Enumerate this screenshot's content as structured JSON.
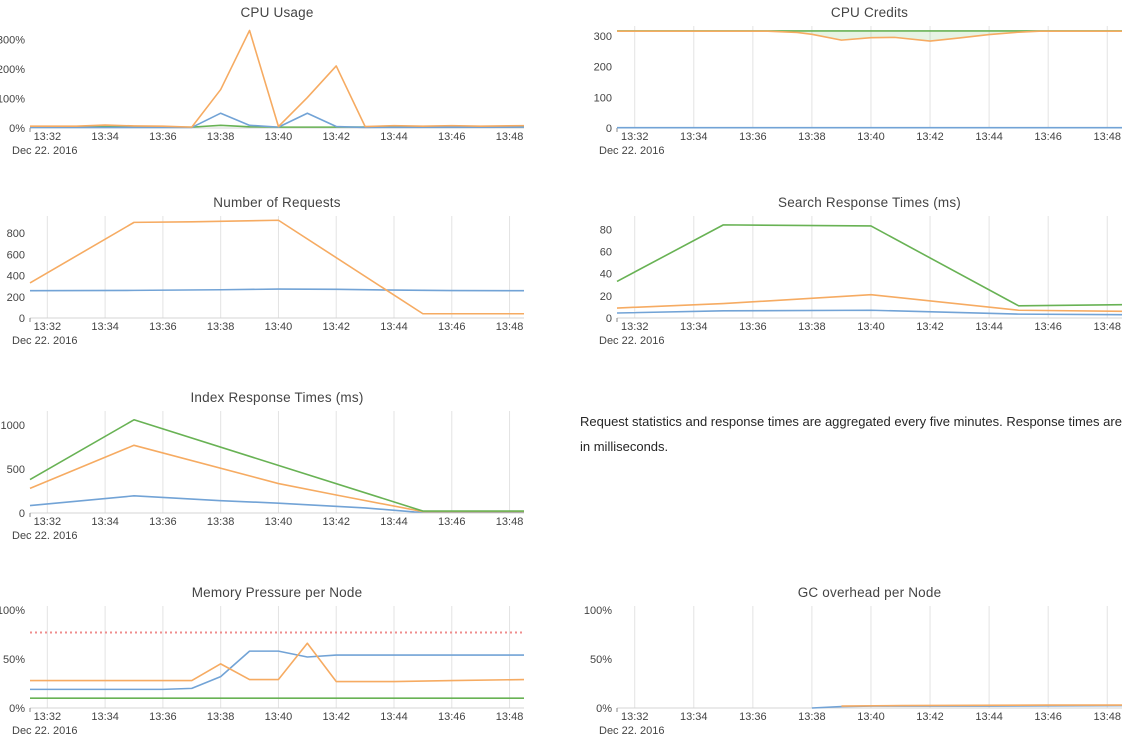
{
  "date_label": "Dec 22. 2016",
  "x_tick_labels": [
    "13:32",
    "13:34",
    "13:36",
    "13:38",
    "13:40",
    "13:42",
    "13:44",
    "13:46",
    "13:48"
  ],
  "note": {
    "text": "Request statistics and response times are aggregated every five minutes. Response times are in milliseconds."
  },
  "colors": {
    "blue": "#72a3d6",
    "orange": "#f6ab62",
    "green": "#68b254",
    "red": "#ef8e8e",
    "grid": "#e3e3e3",
    "axis_line": "#d4d4d4",
    "tick": "#888888",
    "text": "#444444",
    "band_fill": "rgba(104,178,84,0.16)"
  },
  "chart_data": [
    {
      "id": "cpu-usage",
      "type": "line",
      "title": "CPU Usage",
      "grid_vertical": false,
      "x_domain_minutes": [
        91.4,
        108.5
      ],
      "x_tick_minutes": [
        92,
        94,
        96,
        98,
        100,
        102,
        104,
        106,
        108
      ],
      "ylim": [
        0,
        345
      ],
      "y_ticks": [
        {
          "value": 0,
          "label": "0%"
        },
        {
          "value": 100,
          "label": "100%"
        },
        {
          "value": 200,
          "label": "200%"
        },
        {
          "value": 300,
          "label": "300%"
        }
      ],
      "series": [
        {
          "name": "green",
          "color_key": "green",
          "points": [
            [
              91.4,
              4
            ],
            [
              94,
              5
            ],
            [
              96,
              3
            ],
            [
              97,
              3
            ],
            [
              98,
              9
            ],
            [
              99,
              4
            ],
            [
              100,
              3
            ],
            [
              102,
              3
            ],
            [
              104,
              4
            ],
            [
              106,
              3
            ],
            [
              108.5,
              4
            ]
          ]
        },
        {
          "name": "blue",
          "color_key": "blue",
          "points": [
            [
              91.4,
              2
            ],
            [
              96.5,
              2
            ],
            [
              97,
              2
            ],
            [
              98,
              50
            ],
            [
              99,
              9
            ],
            [
              100,
              3
            ],
            [
              101,
              50
            ],
            [
              102,
              5
            ],
            [
              103,
              2
            ],
            [
              108.5,
              3
            ]
          ]
        },
        {
          "name": "orange",
          "color_key": "orange",
          "points": [
            [
              91.4,
              6
            ],
            [
              93,
              6
            ],
            [
              94,
              10
            ],
            [
              95,
              7
            ],
            [
              96,
              6
            ],
            [
              97,
              3
            ],
            [
              98,
              130
            ],
            [
              99,
              330
            ],
            [
              100,
              5
            ],
            [
              101,
              103
            ],
            [
              102,
              210
            ],
            [
              103,
              5
            ],
            [
              104,
              8
            ],
            [
              105,
              6
            ],
            [
              106,
              8
            ],
            [
              107,
              6
            ],
            [
              108.5,
              8
            ]
          ]
        }
      ]
    },
    {
      "id": "cpu-credits",
      "type": "line",
      "title": "CPU Credits",
      "grid_vertical": true,
      "x_domain_minutes": [
        91.4,
        108.5
      ],
      "x_tick_minutes": [
        92,
        94,
        96,
        98,
        100,
        102,
        104,
        106,
        108
      ],
      "ylim": [
        0,
        332
      ],
      "y_ticks": [
        {
          "value": 0,
          "label": "0"
        },
        {
          "value": 100,
          "label": "100"
        },
        {
          "value": 200,
          "label": "200"
        },
        {
          "value": 300,
          "label": "300"
        }
      ],
      "band": {
        "top_series": "green",
        "bottom_series": "orange"
      },
      "series": [
        {
          "name": "blue",
          "color_key": "blue",
          "points": [
            [
              91.4,
              1
            ],
            [
              108.5,
              1
            ]
          ]
        },
        {
          "name": "green",
          "color_key": "green",
          "points": [
            [
              91.4,
              316
            ],
            [
              108.5,
              316
            ]
          ]
        },
        {
          "name": "orange",
          "color_key": "orange",
          "points": [
            [
              91.4,
              315
            ],
            [
              96.5,
              315
            ],
            [
              97.5,
              311
            ],
            [
              98,
              305
            ],
            [
              99,
              286
            ],
            [
              100,
              294
            ],
            [
              100.8,
              295
            ],
            [
              102,
              283
            ],
            [
              103,
              293
            ],
            [
              104,
              304
            ],
            [
              105,
              312
            ],
            [
              105.7,
              315
            ],
            [
              108.5,
              315
            ]
          ]
        }
      ]
    },
    {
      "id": "number-of-requests",
      "type": "line",
      "title": "Number of Requests",
      "grid_vertical": true,
      "x_domain_minutes": [
        91.4,
        108.5
      ],
      "x_tick_minutes": [
        92,
        94,
        96,
        98,
        100,
        102,
        104,
        106,
        108
      ],
      "ylim": [
        0,
        960
      ],
      "y_ticks": [
        {
          "value": 0,
          "label": "0"
        },
        {
          "value": 200,
          "label": "200"
        },
        {
          "value": 400,
          "label": "400"
        },
        {
          "value": 600,
          "label": "600"
        },
        {
          "value": 800,
          "label": "800"
        }
      ],
      "series": [
        {
          "name": "blue",
          "color_key": "blue",
          "points": [
            [
              91.4,
              257
            ],
            [
              95,
              260
            ],
            [
              98,
              266
            ],
            [
              100,
              272
            ],
            [
              102,
              270
            ],
            [
              104,
              263
            ],
            [
              106,
              258
            ],
            [
              108.5,
              257
            ]
          ]
        },
        {
          "name": "orange",
          "color_key": "orange",
          "points": [
            [
              91.4,
              330
            ],
            [
              95,
              900
            ],
            [
              97,
              905
            ],
            [
              100,
              920
            ],
            [
              105,
              40
            ],
            [
              108.5,
              40
            ]
          ]
        }
      ]
    },
    {
      "id": "search-response-times",
      "type": "line",
      "title": "Search Response Times (ms)",
      "grid_vertical": true,
      "x_domain_minutes": [
        91.4,
        108.5
      ],
      "x_tick_minutes": [
        92,
        94,
        96,
        98,
        100,
        102,
        104,
        106,
        108
      ],
      "ylim": [
        0,
        92
      ],
      "y_ticks": [
        {
          "value": 0,
          "label": "0"
        },
        {
          "value": 20,
          "label": "20"
        },
        {
          "value": 40,
          "label": "40"
        },
        {
          "value": 60,
          "label": "60"
        },
        {
          "value": 80,
          "label": "80"
        }
      ],
      "series": [
        {
          "name": "blue",
          "color_key": "blue",
          "points": [
            [
              91.4,
              4.5
            ],
            [
              95,
              6.5
            ],
            [
              100,
              7
            ],
            [
              105,
              3.5
            ],
            [
              108.5,
              3
            ]
          ]
        },
        {
          "name": "orange",
          "color_key": "orange",
          "points": [
            [
              91.4,
              9
            ],
            [
              95,
              13
            ],
            [
              100,
              21
            ],
            [
              105,
              7
            ],
            [
              108.5,
              6
            ]
          ]
        },
        {
          "name": "green",
          "color_key": "green",
          "points": [
            [
              91.4,
              33
            ],
            [
              95,
              84
            ],
            [
              100,
              83
            ],
            [
              105,
              11
            ],
            [
              108.5,
              12
            ]
          ]
        }
      ]
    },
    {
      "id": "index-response-times",
      "type": "line",
      "title": "Index Response Times (ms)",
      "grid_vertical": true,
      "x_domain_minutes": [
        91.4,
        108.5
      ],
      "x_tick_minutes": [
        92,
        94,
        96,
        98,
        100,
        102,
        104,
        106,
        108
      ],
      "ylim": [
        0,
        1160
      ],
      "y_ticks": [
        {
          "value": 0,
          "label": "0"
        },
        {
          "value": 500,
          "label": "500"
        },
        {
          "value": 1000,
          "label": "1000"
        }
      ],
      "series": [
        {
          "name": "blue",
          "color_key": "blue",
          "points": [
            [
              91.4,
              85
            ],
            [
              95,
              195
            ],
            [
              98,
              140
            ],
            [
              100,
              112
            ],
            [
              103,
              58
            ],
            [
              104.7,
              12
            ],
            [
              108.5,
              10
            ]
          ]
        },
        {
          "name": "orange",
          "color_key": "orange",
          "points": [
            [
              91.4,
              280
            ],
            [
              95,
              770
            ],
            [
              100,
              335
            ],
            [
              102,
              205
            ],
            [
              105,
              16
            ],
            [
              108.5,
              16
            ]
          ]
        },
        {
          "name": "green",
          "color_key": "green",
          "points": [
            [
              91.4,
              380
            ],
            [
              95,
              1060
            ],
            [
              105,
              22
            ],
            [
              108.5,
              22
            ]
          ]
        }
      ]
    },
    {
      "id": "memory-pressure-per-node",
      "type": "line",
      "title": "Memory Pressure per Node",
      "grid_vertical": true,
      "x_domain_minutes": [
        91.4,
        108.5
      ],
      "x_tick_minutes": [
        92,
        94,
        96,
        98,
        100,
        102,
        104,
        106,
        108
      ],
      "ylim": [
        0,
        104
      ],
      "y_ticks": [
        {
          "value": 0,
          "label": "0%"
        },
        {
          "value": 50,
          "label": "50%"
        },
        {
          "value": 100,
          "label": "100%"
        }
      ],
      "series": [
        {
          "name": "green",
          "color_key": "green",
          "points": [
            [
              91.4,
              10
            ],
            [
              108.5,
              10
            ]
          ]
        },
        {
          "name": "blue",
          "color_key": "blue",
          "points": [
            [
              91.4,
              19
            ],
            [
              96,
              19
            ],
            [
              97,
              20
            ],
            [
              98,
              32
            ],
            [
              99,
              58
            ],
            [
              100,
              58
            ],
            [
              101,
              52
            ],
            [
              102,
              54
            ],
            [
              108.5,
              54
            ]
          ]
        },
        {
          "name": "orange",
          "color_key": "orange",
          "points": [
            [
              91.4,
              28
            ],
            [
              97,
              28
            ],
            [
              98,
              45
            ],
            [
              99,
              29
            ],
            [
              100,
              29
            ],
            [
              101,
              66
            ],
            [
              102,
              27
            ],
            [
              104,
              27
            ],
            [
              106,
              28
            ],
            [
              108.5,
              29
            ]
          ]
        },
        {
          "name": "threshold",
          "color_key": "red",
          "dashed": true,
          "points": [
            [
              91.4,
              77
            ],
            [
              108.5,
              77
            ]
          ]
        }
      ]
    },
    {
      "id": "gc-overhead-per-node",
      "type": "line",
      "title": "GC overhead per Node",
      "grid_vertical": true,
      "x_domain_minutes": [
        91.4,
        108.5
      ],
      "x_tick_minutes": [
        92,
        94,
        96,
        98,
        100,
        102,
        104,
        106,
        108
      ],
      "ylim": [
        0,
        104
      ],
      "y_ticks": [
        {
          "value": 0,
          "label": "0%"
        },
        {
          "value": 50,
          "label": "50%"
        },
        {
          "value": 100,
          "label": "100%"
        }
      ],
      "series": [
        {
          "name": "blue",
          "color_key": "blue",
          "points": [
            [
              98,
              0
            ],
            [
              99,
              1.5
            ],
            [
              100,
              2
            ],
            [
              104,
              2
            ],
            [
              108.5,
              2.5
            ]
          ]
        },
        {
          "name": "orange",
          "color_key": "orange",
          "points": [
            [
              99,
              2
            ],
            [
              101,
              2.5
            ],
            [
              106,
              3
            ],
            [
              108.5,
              3
            ]
          ]
        }
      ]
    }
  ]
}
